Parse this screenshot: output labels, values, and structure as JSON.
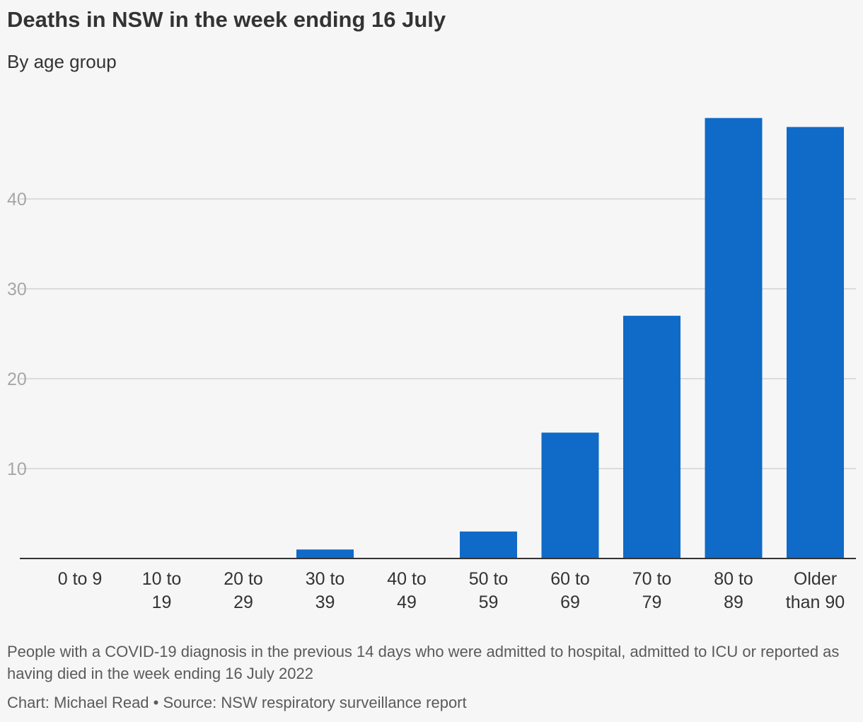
{
  "header": {
    "title": "Deaths in NSW in the week ending 16 July",
    "subtitle": "By age group"
  },
  "footer": {
    "note": "People with a COVID-19 diagnosis in the previous 14 days who were admitted to hospital, admitted to ICU or reported as having died in the week ending 16 July 2022",
    "source": "Chart: Michael Read • Source: NSW respiratory surveillance report"
  },
  "colors": {
    "bar": "#106ac7",
    "grid": "#dcdcdc",
    "axis": "#333333",
    "tick_label": "#a6a6a6",
    "category_label": "#333333"
  },
  "chart_data": {
    "type": "bar",
    "title": "Deaths in NSW in the week ending 16 July",
    "subtitle": "By age group",
    "categories": [
      [
        "0 to 9"
      ],
      [
        "10 to",
        "19"
      ],
      [
        "20 to",
        "29"
      ],
      [
        "30 to",
        "39"
      ],
      [
        "40 to",
        "49"
      ],
      [
        "50 to",
        "59"
      ],
      [
        "60 to",
        "69"
      ],
      [
        "70 to",
        "79"
      ],
      [
        "80 to",
        "89"
      ],
      [
        "Older",
        "than 90"
      ]
    ],
    "values": [
      0,
      0,
      0,
      1,
      0,
      3,
      14,
      27,
      49,
      48
    ],
    "ylim": [
      0,
      50
    ],
    "yticks": [
      10,
      20,
      30,
      40
    ],
    "grid": true,
    "legend": "none",
    "xlabel": "",
    "ylabel": ""
  }
}
